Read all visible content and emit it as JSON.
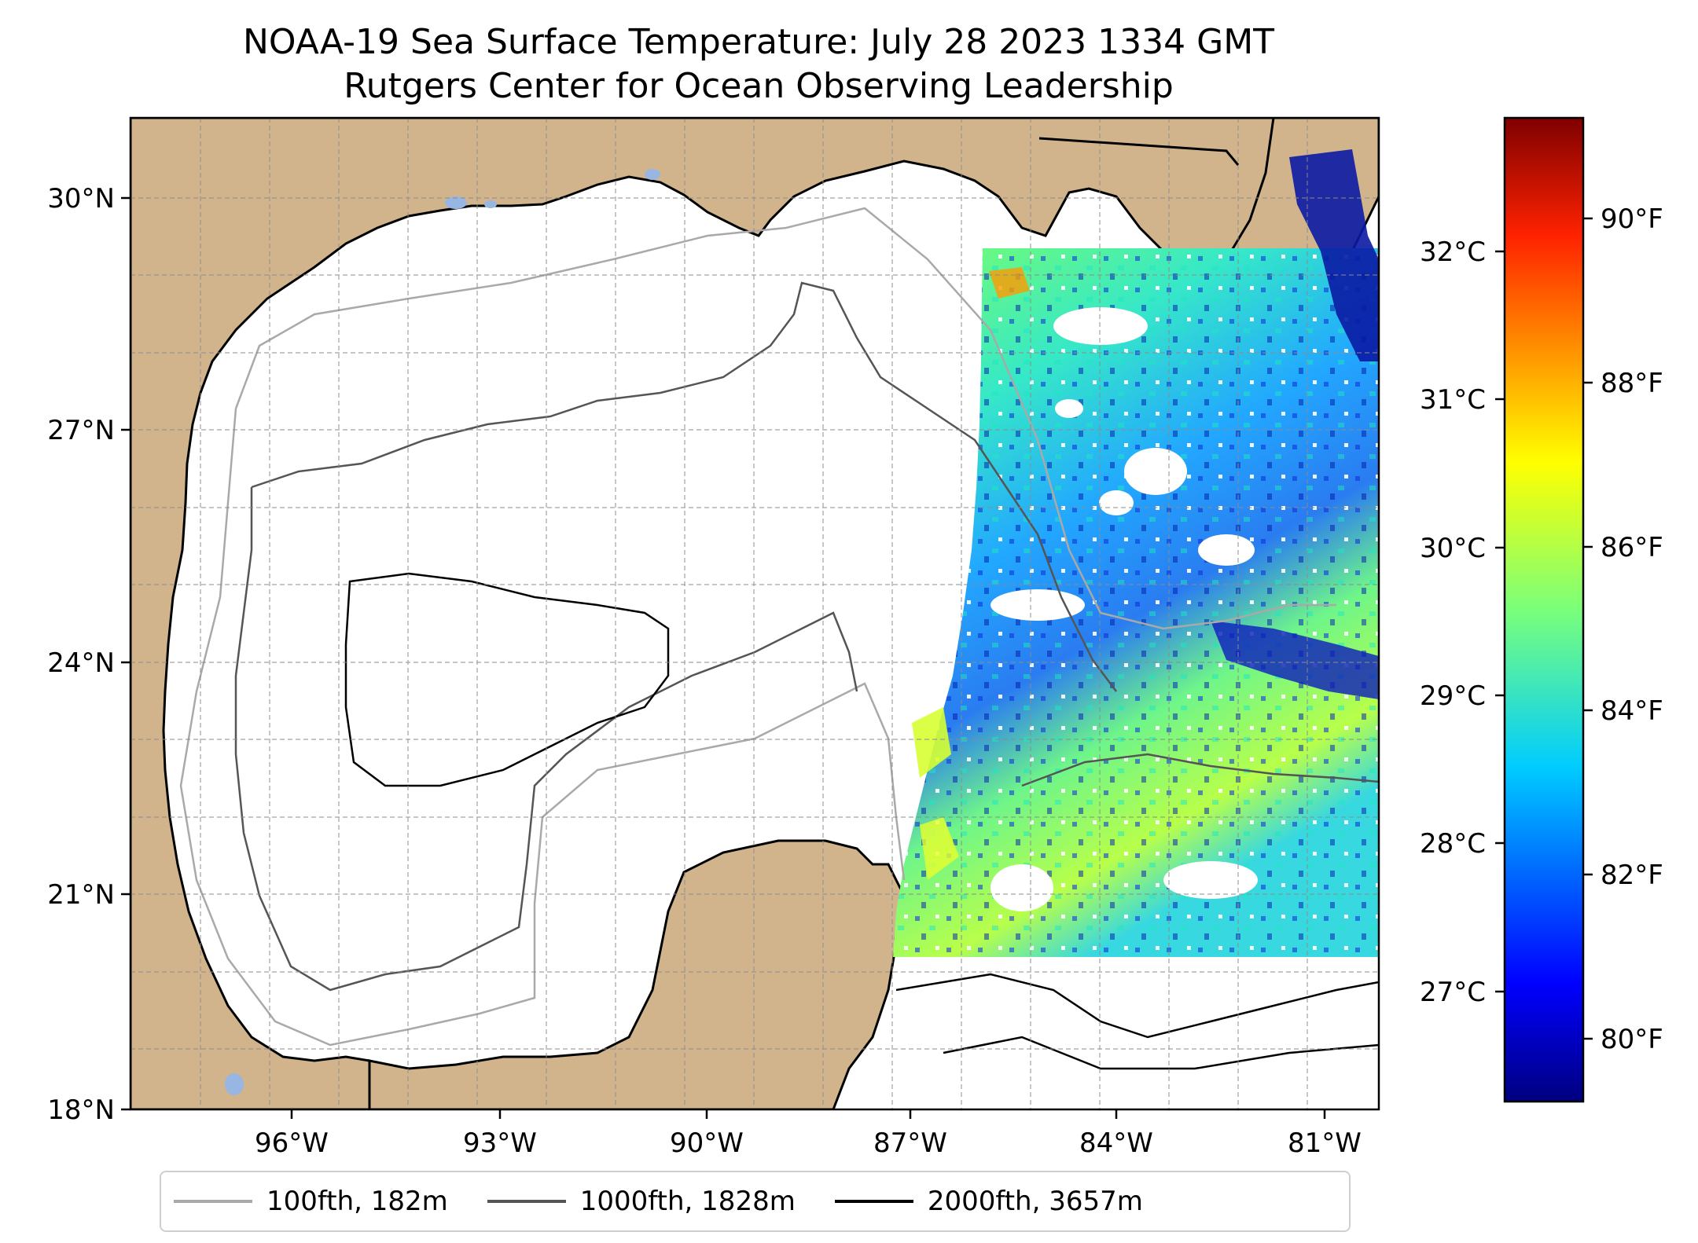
{
  "title": {
    "line1": "NOAA-19 Sea Surface Temperature: July 28 2023 1334 GMT",
    "line2": "Rutgers Center for Ocean Observing Leadership"
  },
  "map": {
    "lon_ticks": [
      "96°W",
      "93°W",
      "90°W",
      "87°W",
      "84°W",
      "81°W"
    ],
    "lat_ticks": [
      "30°N",
      "27°N",
      "24°N",
      "21°N",
      "18°N"
    ],
    "extent": {
      "lon_min": -98.3,
      "lon_max": -80.4,
      "lat_min": 18.0,
      "lat_max": 31.0
    },
    "land_color": "#d2b48c",
    "lake_color": "#97b6e1",
    "coast_color": "#000000",
    "grid": true
  },
  "legend": {
    "items": [
      {
        "label": "100fth, 182m",
        "color": "#a9a9a9"
      },
      {
        "label": "1000fth, 1828m",
        "color": "#555555"
      },
      {
        "label": "2000fth, 3657m",
        "color": "#000000"
      }
    ],
    "placement": "bottom"
  },
  "colorbar": {
    "colormap": "jet",
    "celsius_ticks": [
      "27°C",
      "28°C",
      "29°C",
      "30°C",
      "31°C",
      "32°C"
    ],
    "fahrenheit_ticks": [
      "80°F",
      "82°F",
      "84°F",
      "86°F",
      "88°F",
      "90°F"
    ],
    "range_f": [
      79.0,
      91.5
    ]
  }
}
